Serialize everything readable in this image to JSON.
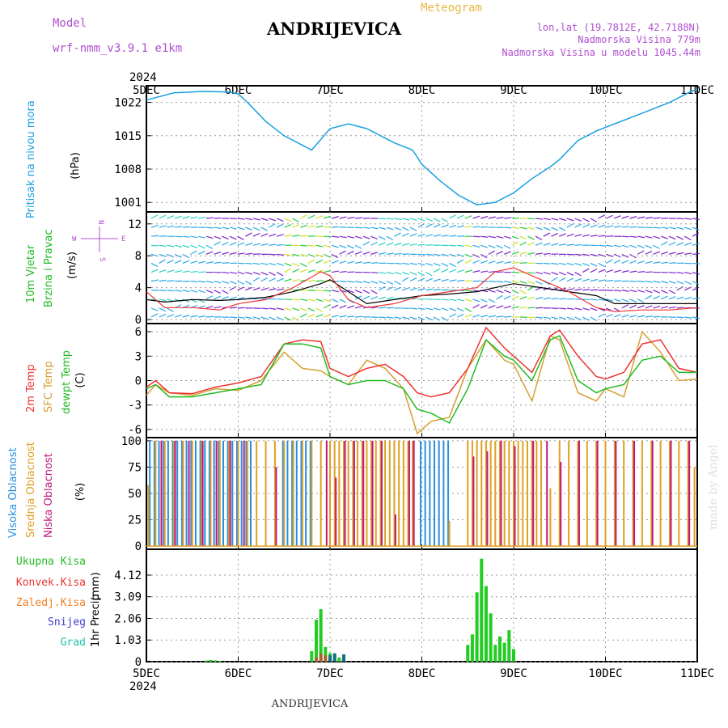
{
  "header": {
    "model_label": "Model",
    "model_name": "wrf-nmm_v3.9.1 e1km",
    "station": "ANDRIJEVICA",
    "title": "Meteogram",
    "coords": "lon,lat (19.7812E, 42.7188N)",
    "elevation": "Nadmorska Visina 779m",
    "model_elevation": "Nadmorska Visina u modelu 1045.44m",
    "credit": "made by Angel",
    "footer_station": "ANDRIJEVICA"
  },
  "time_axis": {
    "year": "2024",
    "labels": [
      "5DEC",
      "6DEC",
      "7DEC",
      "8DEC",
      "9DEC",
      "10DEC",
      "11DEC"
    ]
  },
  "colors": {
    "pressure": "#1a9fe0",
    "temp2m": "#ee3333",
    "sfc": "#d4a030",
    "dewpt": "#22bb22",
    "high_cloud": "#2a8fe0",
    "mid_cloud": "#e0a020",
    "low_cloud": "#c0187a",
    "title_purple": "#b050d0",
    "meteogram_orange": "#e8b840"
  },
  "panels": {
    "pressure": {
      "label": "Pritisak na nivou mora",
      "unit": "(hPa)"
    },
    "wind": {
      "label1": "10m Vjetar",
      "label2": "Brzina i Pravac",
      "unit": "(m/s)",
      "compass_n": "N",
      "compass_s": "S",
      "compass_w": "W",
      "compass_e": "E"
    },
    "temp": {
      "label1": "2m Temp",
      "label2": "SFC Temp",
      "label3": "dewpt Temp",
      "unit": "(C)"
    },
    "cloud": {
      "label1": "Visoka Oblacnost",
      "label2": "Srednja Oblacnost",
      "label3": "Niska Oblacnost",
      "unit": "(%)"
    },
    "precip": {
      "label": "1hr Precip",
      "unit": "(mm)",
      "legend": [
        "Ukupna Kisa",
        "Konvek.Kisa",
        "Zaledj.Kisa",
        "Snijeg",
        "Grad"
      ]
    }
  },
  "chart_data": [
    {
      "type": "line",
      "title": "Pritisak na nivou mora",
      "ylabel": "(hPa)",
      "ylim": [
        999,
        1025.5
      ],
      "yticks": [
        "1022",
        "1015",
        "1008",
        "1001"
      ],
      "x": [
        0,
        0.1,
        0.3,
        0.6,
        0.9,
        1.0,
        1.1,
        1.3,
        1.5,
        1.7,
        1.8,
        2.0,
        2.2,
        2.4,
        2.7,
        2.9,
        3.0,
        3.2,
        3.4,
        3.6,
        3.8,
        4.0,
        4.2,
        4.4,
        4.5,
        4.7,
        4.9,
        5.1,
        5.3,
        5.5,
        5.7,
        5.9,
        6.0
      ],
      "series": [
        {
          "values": [
            1022.5,
            1023.0,
            1024.0,
            1024.3,
            1024.2,
            1023.8,
            1022.0,
            1018.0,
            1015.0,
            1013.0,
            1012.0,
            1016.5,
            1017.5,
            1016.5,
            1013.5,
            1012.0,
            1009.0,
            1005.5,
            1002.5,
            1000.5,
            1001.0,
            1003.0,
            1006.0,
            1008.5,
            1010.0,
            1014.0,
            1016.0,
            1017.5,
            1019.0,
            1020.5,
            1022.0,
            1024.0,
            1024.8
          ]
        }
      ]
    },
    {
      "type": "line",
      "title": "10m Vjetar Brzina i Pravac",
      "ylabel": "(m/s)",
      "ylim": [
        -0.5,
        13.5
      ],
      "yticks": [
        "12",
        "8",
        "4",
        "0"
      ],
      "x": [
        0,
        0.2,
        0.5,
        0.8,
        1.0,
        1.3,
        1.6,
        1.9,
        2.0,
        2.2,
        2.4,
        2.7,
        3.0,
        3.3,
        3.6,
        3.8,
        4.0,
        4.3,
        4.6,
        4.9,
        5.1,
        5.4,
        5.7,
        6.0
      ],
      "series": [
        {
          "values": [
            2.5,
            2.2,
            2.5,
            2.4,
            2.5,
            2.8,
            3.5,
            4.5,
            5.0,
            3.5,
            2.0,
            2.5,
            3.0,
            3.2,
            3.5,
            4.0,
            4.5,
            4.0,
            3.5,
            3.0,
            2.0,
            2.0,
            2.0,
            2.0
          ]
        },
        {
          "values": [
            3.5,
            1.5,
            1.5,
            1.2,
            2.0,
            2.5,
            4.0,
            6.0,
            5.5,
            2.5,
            1.5,
            2.0,
            3.0,
            3.5,
            4.0,
            6.0,
            6.5,
            5.0,
            3.5,
            1.5,
            1.0,
            1.2,
            1.2,
            1.5
          ]
        }
      ]
    },
    {
      "type": "line",
      "title": "2m Temp / SFC Temp / dewpt Temp",
      "ylabel": "(C)",
      "ylim": [
        -7,
        7
      ],
      "yticks": [
        "6",
        "3",
        "0",
        "-3",
        "-6"
      ],
      "x": [
        0,
        0.1,
        0.25,
        0.5,
        0.75,
        1.0,
        1.25,
        1.5,
        1.7,
        1.9,
        2.0,
        2.2,
        2.4,
        2.6,
        2.8,
        2.95,
        3.1,
        3.3,
        3.5,
        3.7,
        3.9,
        4.0,
        4.2,
        4.4,
        4.5,
        4.7,
        4.9,
        5.0,
        5.2,
        5.4,
        5.6,
        5.8,
        6.0
      ],
      "series": [
        {
          "name": "2m Temp",
          "values": [
            -0.8,
            0.0,
            -1.5,
            -1.6,
            -0.8,
            -0.3,
            0.5,
            4.5,
            5.0,
            4.8,
            1.5,
            0.5,
            1.5,
            2.0,
            0.5,
            -1.5,
            -2.0,
            -1.5,
            1.5,
            6.5,
            4.0,
            3.0,
            1.0,
            5.5,
            6.2,
            3.0,
            0.5,
            0.2,
            1.0,
            4.5,
            5.0,
            1.5,
            1.0
          ]
        },
        {
          "name": "SFC Temp",
          "values": [
            -1.8,
            -0.5,
            -1.5,
            -1.8,
            -1.0,
            -1.2,
            0.0,
            3.5,
            1.5,
            1.2,
            0.5,
            -0.5,
            2.5,
            1.5,
            -1.0,
            -6.5,
            -5.0,
            -4.5,
            1.5,
            5.0,
            2.5,
            2.0,
            -2.5,
            5.5,
            5.0,
            -1.5,
            -2.5,
            -1.0,
            -2.0,
            6.0,
            3.5,
            0.0,
            0.2
          ]
        },
        {
          "name": "dewpt Temp",
          "values": [
            -1.0,
            -0.5,
            -2.0,
            -2.0,
            -1.5,
            -1.0,
            -0.5,
            4.5,
            4.5,
            4.0,
            0.5,
            -0.5,
            0.0,
            0.0,
            -1.0,
            -3.5,
            -4.0,
            -5.2,
            -1.0,
            5.0,
            3.0,
            2.5,
            0.0,
            5.0,
            5.5,
            0.0,
            -1.5,
            -1.0,
            -0.5,
            2.5,
            3.0,
            1.0,
            1.0
          ]
        }
      ]
    },
    {
      "type": "bar",
      "title": "Visoka / Srednja / Niska Oblacnost",
      "ylabel": "(%)",
      "ylim": [
        0,
        100
      ],
      "yticks": [
        "100",
        "75",
        "50",
        "25",
        "0"
      ],
      "series": [
        {
          "name": "Visoka Oblacnost",
          "x": [
            0.05,
            0.1,
            0.15,
            0.2,
            0.25,
            0.3,
            0.35,
            0.4,
            0.45,
            0.5,
            0.55,
            0.6,
            0.65,
            0.7,
            0.75,
            0.8,
            0.85,
            0.9,
            0.95,
            1.0,
            1.05,
            1.1,
            1.15,
            1.5,
            1.55,
            1.6,
            1.65,
            1.7,
            1.75,
            1.8,
            3.0,
            3.05,
            3.1,
            3.15,
            3.2,
            3.25,
            3.3
          ],
          "values": [
            100,
            100,
            100,
            100,
            100,
            100,
            100,
            100,
            100,
            100,
            100,
            100,
            100,
            100,
            100,
            100,
            100,
            100,
            100,
            100,
            100,
            100,
            100,
            100,
            100,
            100,
            100,
            100,
            100,
            100,
            100,
            100,
            100,
            100,
            100,
            100,
            100
          ]
        },
        {
          "name": "Srednja Oblacnost",
          "x": [
            0.02,
            0.1,
            0.2,
            0.3,
            0.4,
            0.5,
            0.6,
            0.7,
            0.8,
            0.9,
            1.0,
            1.1,
            1.2,
            1.3,
            1.4,
            1.5,
            1.6,
            1.7,
            1.8,
            1.9,
            2.0,
            2.05,
            2.1,
            2.15,
            2.2,
            2.25,
            2.3,
            2.35,
            2.4,
            2.45,
            2.5,
            2.55,
            2.6,
            2.65,
            2.7,
            2.75,
            2.8,
            2.85,
            2.9,
            3.3,
            3.5,
            3.55,
            3.6,
            3.65,
            3.7,
            3.75,
            3.8,
            3.85,
            3.9,
            3.95,
            4.0,
            4.05,
            4.1,
            4.15,
            4.2,
            4.25,
            4.3,
            4.4,
            4.5,
            4.6,
            4.7,
            4.8,
            4.9,
            5.0,
            5.1,
            5.2,
            5.3,
            5.4,
            5.5,
            5.6,
            5.7,
            5.8,
            5.9,
            5.97
          ],
          "values": [
            58,
            100,
            100,
            100,
            100,
            100,
            100,
            100,
            100,
            100,
            100,
            100,
            100,
            100,
            100,
            100,
            100,
            100,
            100,
            100,
            100,
            100,
            100,
            100,
            100,
            100,
            100,
            100,
            100,
            100,
            100,
            100,
            100,
            100,
            100,
            100,
            100,
            100,
            100,
            24,
            100,
            100,
            100,
            100,
            100,
            100,
            100,
            100,
            100,
            100,
            100,
            100,
            100,
            100,
            100,
            100,
            100,
            55,
            100,
            100,
            100,
            100,
            100,
            100,
            100,
            100,
            100,
            100,
            100,
            100,
            100,
            100,
            100,
            75
          ]
        },
        {
          "name": "Niska Oblacnost",
          "x": [
            0.15,
            0.3,
            0.45,
            0.6,
            0.75,
            0.9,
            1.05,
            1.4,
            1.95,
            2.05,
            2.15,
            2.25,
            2.35,
            2.45,
            2.55,
            2.7,
            2.85,
            2.9,
            3.55,
            3.7,
            3.85,
            4.0,
            4.2,
            4.35,
            4.5,
            4.7,
            4.9,
            5.1,
            5.3,
            5.5,
            5.7,
            5.9
          ],
          "values": [
            100,
            100,
            100,
            100,
            100,
            100,
            100,
            75,
            100,
            65,
            100,
            100,
            100,
            100,
            100,
            30,
            100,
            100,
            85,
            90,
            100,
            95,
            100,
            100,
            80,
            100,
            100,
            100,
            100,
            100,
            100,
            100
          ]
        }
      ]
    },
    {
      "type": "bar",
      "title": "1hr Precip",
      "ylabel": "1hr Precip (mm)",
      "ylim": [
        0,
        5.0
      ],
      "yticks": [
        "4.12",
        "3.09",
        "2.06",
        "1.03",
        "0"
      ],
      "series": [
        {
          "name": "Ukupna Kisa",
          "x": [
            0.65,
            0.7,
            0.75,
            0.8,
            1.8,
            1.85,
            1.9,
            1.95,
            2.0,
            2.05,
            2.1,
            2.15,
            3.5,
            3.55,
            3.6,
            3.65,
            3.7,
            3.75,
            3.8,
            3.85,
            3.9,
            3.95,
            4.0
          ],
          "values": [
            0.05,
            0.08,
            0.06,
            0.04,
            0.5,
            2.0,
            2.5,
            0.7,
            0.4,
            0.3,
            0.2,
            0.1,
            0.8,
            1.3,
            3.3,
            4.9,
            3.6,
            2.3,
            0.8,
            1.2,
            0.9,
            1.5,
            0.6
          ]
        },
        {
          "name": "Konvek.Kisa",
          "x": [
            1.85,
            1.9,
            1.95
          ],
          "values": [
            0.2,
            0.4,
            0.3
          ]
        },
        {
          "name": "Grad",
          "x": [
            2.0,
            2.05,
            2.15
          ],
          "values": [
            0.3,
            0.4,
            0.35
          ]
        }
      ]
    }
  ]
}
